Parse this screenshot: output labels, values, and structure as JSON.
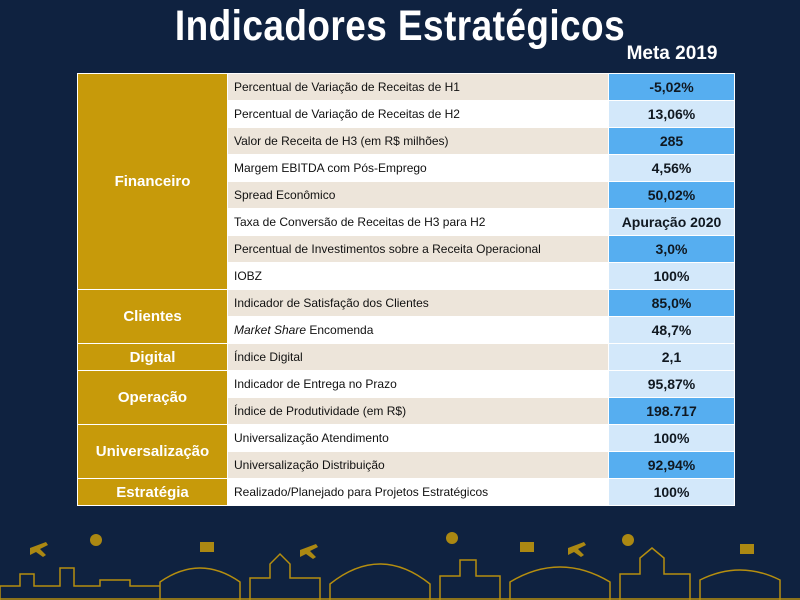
{
  "title": "Indicadores Estratégicos",
  "meta_header": "Meta 2019",
  "categories": {
    "financeiro": "Financeiro",
    "clientes": "Clientes",
    "digital": "Digital",
    "operacao": "Operação",
    "universalizacao": "Universalização",
    "estrategia": "Estratégia"
  },
  "rows": [
    {
      "indicator": "Percentual de Variação de Receitas de H1",
      "value": "-5,02%"
    },
    {
      "indicator": "Percentual de Variação de Receitas de H2",
      "value": "13,06%"
    },
    {
      "indicator": "Valor de Receita de H3 (em R$ milhões)",
      "value": "285"
    },
    {
      "indicator": "Margem EBITDA com Pós-Emprego",
      "value": "4,56%"
    },
    {
      "indicator": "Spread Econômico",
      "value": "50,02%"
    },
    {
      "indicator": "Taxa de Conversão de Receitas de H3 para H2",
      "value": "Apuração 2020"
    },
    {
      "indicator": "Percentual de Investimentos sobre a Receita Operacional",
      "value": "3,0%"
    },
    {
      "indicator": "IOBZ",
      "value": "100%"
    },
    {
      "indicator": "Indicador de Satisfação dos Clientes",
      "value": "85,0%"
    },
    {
      "indicator_italic": "Market Share",
      "indicator": " Encomenda",
      "value": "48,7%"
    },
    {
      "indicator": "Índice Digital",
      "value": "2,1"
    },
    {
      "indicator": "Indicador de Entrega no Prazo",
      "value": "95,87%"
    },
    {
      "indicator": "Índice de Produtividade (em R$)",
      "value": "198.717"
    },
    {
      "indicator": "Universalização Atendimento",
      "value": "100%"
    },
    {
      "indicator": "Universalização Distribuição",
      "value": "92,94%"
    },
    {
      "indicator": "Realizado/Planejado para Projetos Estratégicos",
      "value": "100%"
    }
  ],
  "colors": {
    "background": "#0f2240",
    "category": "#c79a0a",
    "value_dark": "#56aef0",
    "value_light": "#d3e8fa",
    "row_alt": "#ede5da"
  }
}
